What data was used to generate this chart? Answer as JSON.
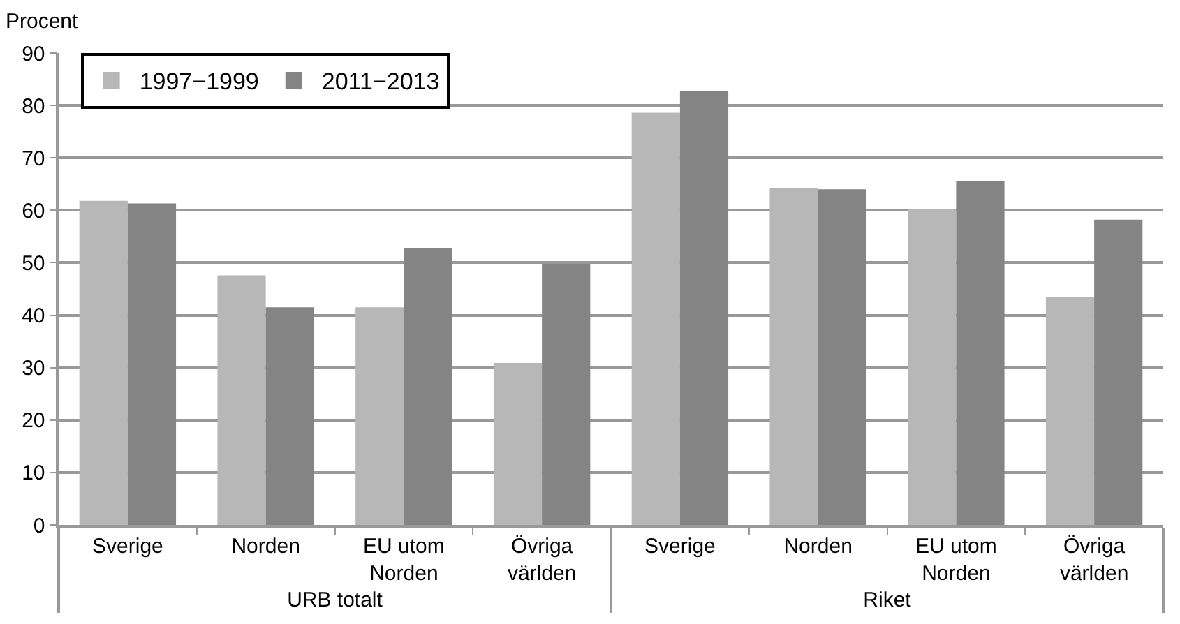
{
  "chart_data": {
    "type": "bar",
    "ylabel": "Procent",
    "categories": [
      "Sverige",
      "Norden",
      "EU utom Norden",
      "Övriga världen",
      "Sverige",
      "Norden",
      "EU utom Norden",
      "Övriga världen"
    ],
    "series": [
      {
        "name": "1997−1999",
        "color": "#b7b7b7",
        "values": [
          61.8,
          47.6,
          41.5,
          30.9,
          78.6,
          64.2,
          60.2,
          43.5
        ]
      },
      {
        "name": "2011−2013",
        "color": "#848484",
        "values": [
          61.3,
          41.5,
          52.8,
          49.8,
          82.7,
          64.0,
          65.5,
          58.2
        ]
      }
    ],
    "annotations": [
      "URB totalt",
      "Riket"
    ],
    "ylim": [
      0,
      90
    ],
    "yticks": [
      0,
      10,
      20,
      30,
      40,
      50,
      60,
      70,
      80,
      90
    ],
    "grid": "y",
    "legend": "top left"
  }
}
